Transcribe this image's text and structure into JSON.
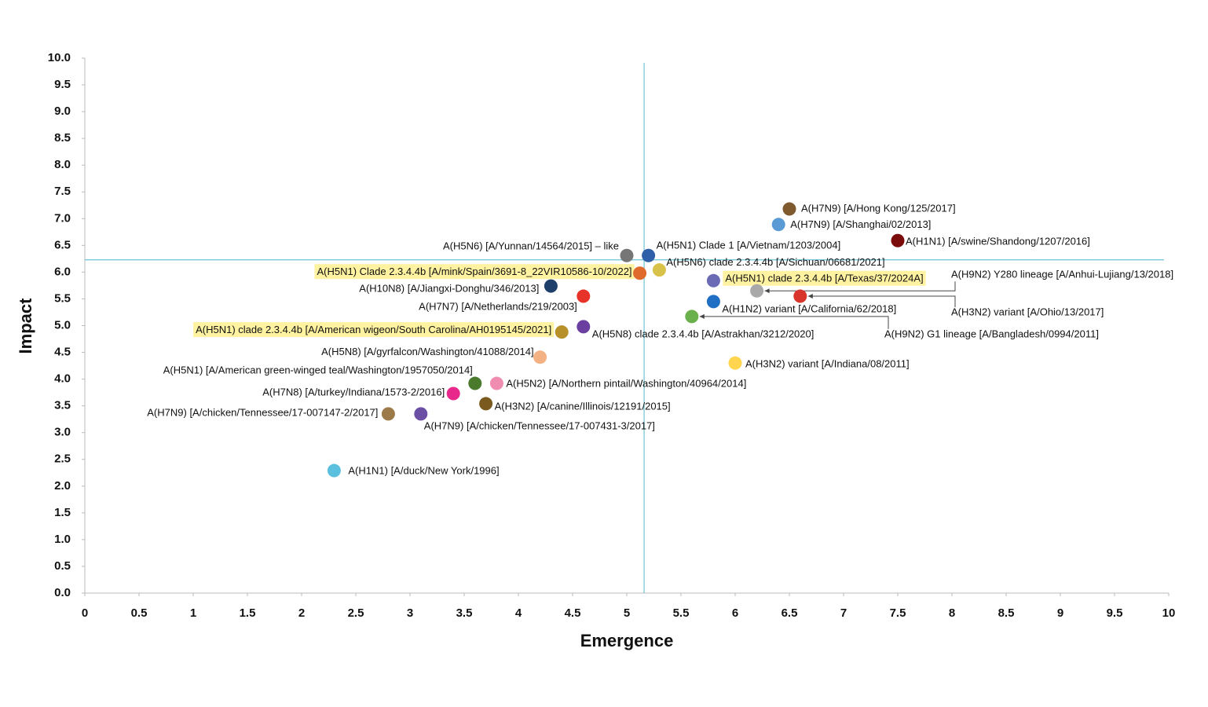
{
  "chart_data": {
    "type": "scatter",
    "x_label": "Emergence",
    "y_label": "Impact",
    "xlim": [
      0,
      10
    ],
    "ylim": [
      0,
      10
    ],
    "xticks": [
      0,
      0.5,
      1,
      1.5,
      2,
      2.5,
      3,
      3.5,
      4,
      4.5,
      5,
      5.5,
      6,
      6.5,
      7,
      7.5,
      8,
      8.5,
      9,
      9.5,
      10
    ],
    "yticks": [
      {
        "value": 0,
        "label": "0.0"
      },
      {
        "value": 0.5,
        "label": "0.5"
      },
      {
        "value": 1,
        "label": "1.0"
      },
      {
        "value": 1.5,
        "label": "1.5"
      },
      {
        "value": 2,
        "label": "2.0"
      },
      {
        "value": 2.5,
        "label": "2.5"
      },
      {
        "value": 3,
        "label": "3.0"
      },
      {
        "value": 3.5,
        "label": "3.5"
      },
      {
        "value": 4,
        "label": "4.0"
      },
      {
        "value": 4.5,
        "label": "4.5"
      },
      {
        "value": 5,
        "label": "5.0"
      },
      {
        "value": 5.5,
        "label": "5.5"
      },
      {
        "value": 6,
        "label": "6.0"
      },
      {
        "value": 6.5,
        "label": "6.5"
      },
      {
        "value": 7,
        "label": "7.0"
      },
      {
        "value": 7.5,
        "label": "7.5"
      },
      {
        "value": 8,
        "label": "8.0"
      },
      {
        "value": 8.5,
        "label": "8.5"
      },
      {
        "value": 9,
        "label": "9.0"
      },
      {
        "value": 9.5,
        "label": "9.5"
      },
      {
        "value": 10,
        "label": "10.0"
      }
    ],
    "reference_x": 5.16,
    "reference_y": 6.23,
    "reference_color": "#6cc3d5",
    "highlight_color": "#fff2a0",
    "series": [
      {
        "name": "A(H7N9) [A/Hong Kong/125/2017]",
        "color": "#7f5a2e",
        "x": 6.5,
        "y": 7.18
      },
      {
        "name": "A(H7N9) [A/Shanghai/02/2013]",
        "color": "#5b9bd5",
        "x": 6.4,
        "y": 6.89
      },
      {
        "name": "A(H1N1) [A/swine/Shandong/1207/2016]",
        "color": "#7b0c0c",
        "x": 7.5,
        "y": 6.59
      },
      {
        "name": "A(H5N6) [A/Yunnan/14564/2015] – like",
        "color": "#767676",
        "x": 5.0,
        "y": 6.31
      },
      {
        "name": "A(H5N1) Clade 1 [A/Vietnam/1203/2004]",
        "color": "#2e5fa8",
        "x": 5.2,
        "y": 6.31
      },
      {
        "name": "A(H5N6) clade 2.3.4.4b [A/Sichuan/06681/2021]",
        "color": "#d9c24a",
        "x": 5.3,
        "y": 6.04
      },
      {
        "name": "A(H5N1) Clade 2.3.4.4b [A/mink/Spain/3691-8_22VIR10586-10/2022]",
        "color": "#e06a2b",
        "x": 5.12,
        "y": 5.98,
        "highlight": true
      },
      {
        "name": "A(H5N1) clade 2.3.4.4b [A/Texas/37/2024A]",
        "color": "#6a6ab5",
        "x": 5.8,
        "y": 5.84,
        "highlight": true
      },
      {
        "name": "A(H10N8) [A/Jiangxi-Donghu/346/2013]",
        "color": "#1f3f6b",
        "x": 4.3,
        "y": 5.74
      },
      {
        "name": "A(H9N2) Y280 lineage [A/Anhui-Lujiang/13/2018]",
        "color": "#a9a9a9",
        "x": 6.2,
        "y": 5.65
      },
      {
        "name": "A(H7N7) [A/Netherlands/219/2003]",
        "color": "#e8332a",
        "x": 4.6,
        "y": 5.55
      },
      {
        "name": "A(H3N2) variant [A/Ohio/13/2017]",
        "color": "#d9342b",
        "x": 6.6,
        "y": 5.55
      },
      {
        "name": "A(H1N2) variant [A/California/62/2018]",
        "color": "#1f6fc5",
        "x": 5.8,
        "y": 5.45
      },
      {
        "name": "A(H9N2) G1 lineage [A/Bangladesh/0994/2011]",
        "color": "#6ab04c",
        "x": 5.6,
        "y": 5.17
      },
      {
        "name": "A(H5N8) clade 2.3.4.4b [A/Astrakhan/3212/2020]",
        "color": "#6b3fa0",
        "x": 4.6,
        "y": 4.98
      },
      {
        "name": "A(H5N1) clade 2.3.4.4b [A/American wigeon/South Carolina/AH0195145/2021]",
        "color": "#b8902a",
        "x": 4.4,
        "y": 4.88,
        "highlight": true
      },
      {
        "name": "A(H5N8) [A/gyrfalcon/Washington/41088/2014]",
        "color": "#f4b183",
        "x": 4.2,
        "y": 4.41
      },
      {
        "name": "A(H3N2) variant [A/Indiana/08/2011]",
        "color": "#ffd54f",
        "x": 6.0,
        "y": 4.3
      },
      {
        "name": "A(H5N1) [A/American green-winged teal/Washington/1957050/2014]",
        "color": "#4a7a2c",
        "x": 3.6,
        "y": 3.92
      },
      {
        "name": "A(H5N2) [A/Northern pintail/Washington/40964/2014]",
        "color": "#f08cb0",
        "x": 3.8,
        "y": 3.92
      },
      {
        "name": "A(H7N8) [A/turkey/Indiana/1573-2/2016]",
        "color": "#e8288a",
        "x": 3.4,
        "y": 3.73
      },
      {
        "name": "A(H3N2) [A/canine/Illinois/12191/2015]",
        "color": "#7a5a1e",
        "x": 3.7,
        "y": 3.54
      },
      {
        "name": "A(H7N9) [A/chicken/Tennessee/17-007147-2/2017]",
        "color": "#9c7a4a",
        "x": 2.8,
        "y": 3.35
      },
      {
        "name": "A(H7N9) [A/chicken/Tennessee/17-007431-3/2017]",
        "color": "#6a4fa5",
        "x": 3.1,
        "y": 3.35
      },
      {
        "name": "A(H1N1) [A/duck/New York/1996]",
        "color": "#5bc0de",
        "x": 2.3,
        "y": 2.29
      }
    ]
  }
}
